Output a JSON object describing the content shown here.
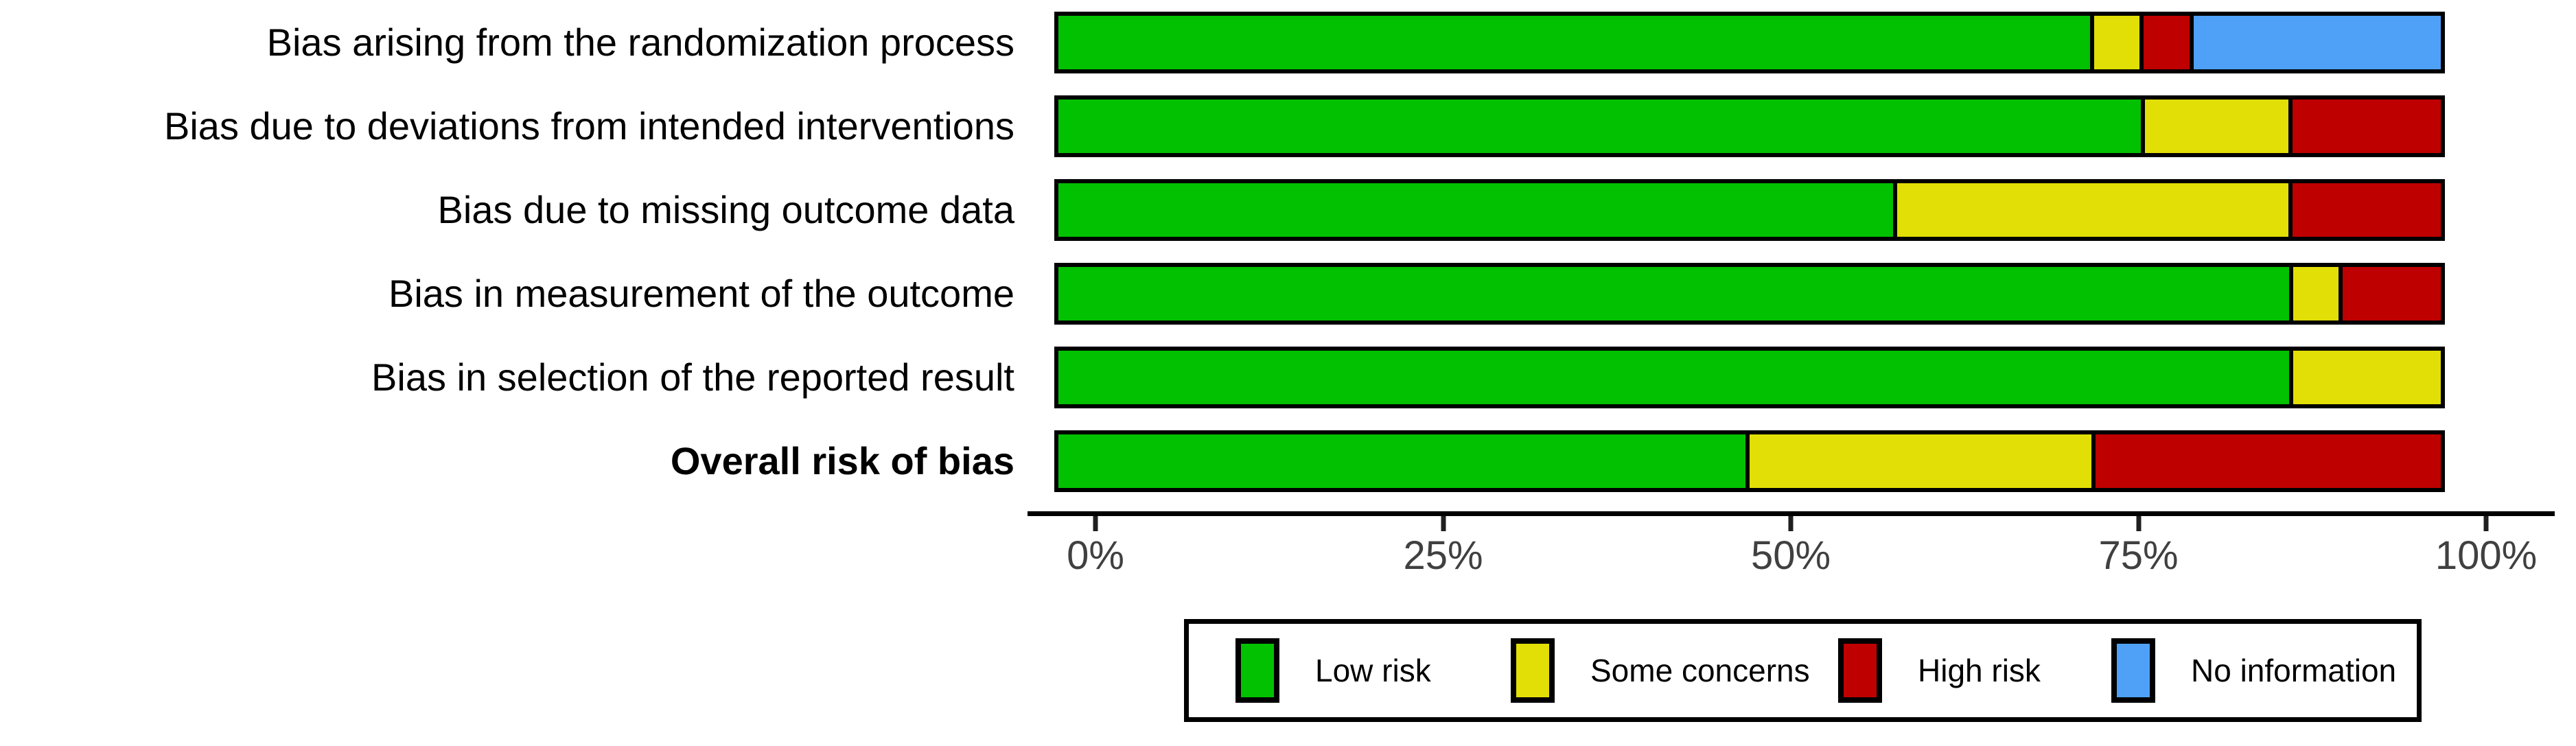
{
  "chart_data": {
    "type": "bar",
    "variant": "horizontal-stacked",
    "title": "",
    "xlabel": "",
    "ylabel": "",
    "categories": [
      {
        "label": "Bias arising from the randomization process",
        "bold": false
      },
      {
        "label": "Bias due to deviations from intended interventions",
        "bold": false
      },
      {
        "label": "Bias due to missing outcome data",
        "bold": false
      },
      {
        "label": "Bias in measurement of the outcome",
        "bold": false
      },
      {
        "label": "Bias in selection of the reported result",
        "bold": false
      },
      {
        "label": "Overall risk of bias",
        "bold": true
      }
    ],
    "series": [
      {
        "name": "Low risk",
        "color": "#02C100",
        "values": [
          75.0,
          78.6,
          60.7,
          89.3,
          89.3,
          50.0
        ]
      },
      {
        "name": "Some concerns",
        "color": "#E2DF07",
        "values": [
          3.6,
          10.7,
          28.6,
          3.6,
          10.7,
          25.0
        ]
      },
      {
        "name": "High risk",
        "color": "#BF0000",
        "values": [
          3.6,
          10.7,
          10.7,
          7.1,
          0,
          25.0
        ]
      },
      {
        "name": "No information",
        "color": "#4EA1F7",
        "values": [
          17.9,
          0,
          0,
          0,
          0,
          0
        ]
      }
    ],
    "x_axis": {
      "range": [
        0,
        100
      ],
      "tick_labels": [
        "0%",
        "25%",
        "50%",
        "75%",
        "100%"
      ]
    },
    "legend": {
      "position": "bottom",
      "items": [
        {
          "label": "Low risk",
          "color": "#02C100"
        },
        {
          "label": "Some concerns",
          "color": "#E2DF07"
        },
        {
          "label": "High risk",
          "color": "#BF0000"
        },
        {
          "label": "No information",
          "color": "#4EA1F7"
        }
      ]
    },
    "colors": {
      "bar_outline": "#000000",
      "axis_line": "#000000",
      "tick_label": "#404040",
      "background": "#ffffff"
    }
  }
}
